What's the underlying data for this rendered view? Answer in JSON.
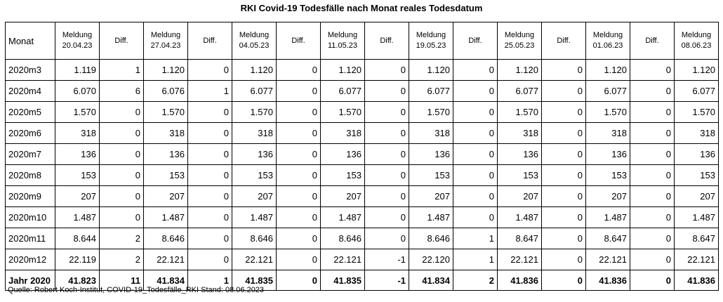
{
  "title": "RKI Covid-19 Todesfälle nach Monat reales Todesdatum",
  "header": {
    "monat": "Monat",
    "columns": [
      {
        "line1": "Meldung",
        "line2": "20.04.23"
      },
      {
        "line1": "Diff.",
        "line2": ""
      },
      {
        "line1": "Meldung",
        "line2": "27.04.23"
      },
      {
        "line1": "Diff.",
        "line2": ""
      },
      {
        "line1": "Meldung",
        "line2": "04.05.23"
      },
      {
        "line1": "Diff.",
        "line2": ""
      },
      {
        "line1": "Meldung",
        "line2": "11.05.23"
      },
      {
        "line1": "Diff.",
        "line2": ""
      },
      {
        "line1": "Meldung",
        "line2": "19.05.23"
      },
      {
        "line1": "Diff.",
        "line2": ""
      },
      {
        "line1": "Meldung",
        "line2": "25.05.23"
      },
      {
        "line1": "Diff.",
        "line2": ""
      },
      {
        "line1": "Meldung",
        "line2": "01.06.23"
      },
      {
        "line1": "Diff.",
        "line2": ""
      },
      {
        "line1": "Meldung",
        "line2": "08.06.23"
      }
    ]
  },
  "rows": [
    {
      "label": "2020m3",
      "cells": [
        "1.119",
        "1",
        "1.120",
        "0",
        "1.120",
        "0",
        "1.120",
        "0",
        "1.120",
        "0",
        "1.120",
        "0",
        "1.120",
        "0",
        "1.120"
      ]
    },
    {
      "label": "2020m4",
      "cells": [
        "6.070",
        "6",
        "6.076",
        "1",
        "6.077",
        "0",
        "6.077",
        "0",
        "6.077",
        "0",
        "6.077",
        "0",
        "6.077",
        "0",
        "6.077"
      ]
    },
    {
      "label": "2020m5",
      "cells": [
        "1.570",
        "0",
        "1.570",
        "0",
        "1.570",
        "0",
        "1.570",
        "0",
        "1.570",
        "0",
        "1.570",
        "0",
        "1.570",
        "0",
        "1.570"
      ]
    },
    {
      "label": "2020m6",
      "cells": [
        "318",
        "0",
        "318",
        "0",
        "318",
        "0",
        "318",
        "0",
        "318",
        "0",
        "318",
        "0",
        "318",
        "0",
        "318"
      ]
    },
    {
      "label": "2020m7",
      "cells": [
        "136",
        "0",
        "136",
        "0",
        "136",
        "0",
        "136",
        "0",
        "136",
        "0",
        "136",
        "0",
        "136",
        "0",
        "136"
      ]
    },
    {
      "label": "2020m8",
      "cells": [
        "153",
        "0",
        "153",
        "0",
        "153",
        "0",
        "153",
        "0",
        "153",
        "0",
        "153",
        "0",
        "153",
        "0",
        "153"
      ]
    },
    {
      "label": "2020m9",
      "cells": [
        "207",
        "0",
        "207",
        "0",
        "207",
        "0",
        "207",
        "0",
        "207",
        "0",
        "207",
        "0",
        "207",
        "0",
        "207"
      ]
    },
    {
      "label": "2020m10",
      "cells": [
        "1.487",
        "0",
        "1.487",
        "0",
        "1.487",
        "0",
        "1.487",
        "0",
        "1.487",
        "0",
        "1.487",
        "0",
        "1.487",
        "0",
        "1.487"
      ]
    },
    {
      "label": "2020m11",
      "cells": [
        "8.644",
        "2",
        "8.646",
        "0",
        "8.646",
        "0",
        "8.646",
        "0",
        "8.646",
        "1",
        "8.647",
        "0",
        "8.647",
        "0",
        "8.647"
      ]
    },
    {
      "label": "2020m12",
      "cells": [
        "22.119",
        "2",
        "22.121",
        "0",
        "22.121",
        "0",
        "22.121",
        "-1",
        "22.120",
        "1",
        "22.121",
        "0",
        "22.121",
        "0",
        "22.121"
      ]
    }
  ],
  "total": {
    "label": "Jahr 2020",
    "cells": [
      "41.823",
      "11",
      "41.834",
      "1",
      "41.835",
      "0",
      "41.835",
      "-1",
      "41.834",
      "2",
      "41.836",
      "0",
      "41.836",
      "0",
      "41.836"
    ]
  },
  "source": "Quelle: Robert Koch-Institut, COVID-19_Todesfälle_RKI Stand: 08.06.2023"
}
